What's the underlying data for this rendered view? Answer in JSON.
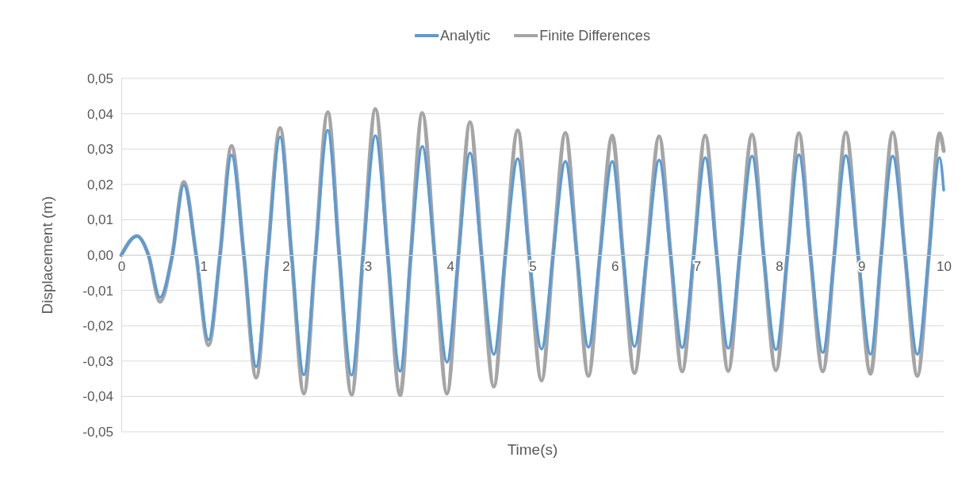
{
  "chart_data": {
    "type": "line",
    "xlabel": "Time(s)",
    "ylabel": "Displacement (m)",
    "x": [
      0,
      0.19,
      0.33,
      0.47,
      0.62,
      0.76,
      0.91,
      1.06,
      1.2,
      1.34,
      1.49,
      1.64,
      1.78,
      1.93,
      2.07,
      2.22,
      2.36,
      2.51,
      2.65,
      2.8,
      2.94,
      3.09,
      3.24,
      3.39,
      3.52,
      3.66,
      3.81,
      3.96,
      4.1,
      4.24,
      4.38,
      4.53,
      4.67,
      4.82,
      4.96,
      5.11,
      5.25,
      5.4,
      5.54,
      5.68,
      5.82,
      5.97,
      6.1,
      6.24,
      6.39,
      6.54,
      6.68,
      6.82,
      6.96,
      7.1,
      7.24,
      7.38,
      7.52,
      7.67,
      7.81,
      7.96,
      8.1,
      8.24,
      8.38,
      8.53,
      8.67,
      8.81,
      8.96,
      9.11,
      9.24,
      9.38,
      9.53,
      9.68,
      9.82,
      9.95,
      10
    ],
    "series": [
      {
        "name": "Analytic",
        "color": "#5b9bd5",
        "values": [
          0,
          0.0054,
          0,
          -0.012,
          0,
          0.0198,
          0,
          -0.024,
          0,
          0.0283,
          0,
          -0.0316,
          0,
          0.0334,
          0,
          -0.0339,
          0,
          0.0353,
          0,
          -0.034,
          0,
          0.0338,
          0,
          -0.0329,
          0,
          0.0308,
          0,
          -0.0303,
          0,
          0.0289,
          0,
          -0.0281,
          0,
          0.0273,
          0,
          -0.0266,
          0,
          0.0265,
          0,
          -0.0261,
          0,
          0.0265,
          0,
          -0.0259,
          0,
          0.0269,
          0,
          -0.0262,
          0,
          0.0276,
          0,
          -0.0264,
          0,
          0.028,
          0,
          -0.0268,
          0,
          0.0284,
          0,
          -0.0276,
          0,
          0.0282,
          0,
          -0.0281,
          0,
          0.028,
          0,
          -0.0281,
          0,
          0.0276,
          0.0184
        ]
      },
      {
        "name": "Finite Differences",
        "color": "#a5a5a5",
        "values": [
          0,
          0.0054,
          0,
          -0.0132,
          0,
          0.0207,
          0,
          -0.0255,
          0,
          0.0309,
          0,
          -0.0347,
          0,
          0.036,
          0,
          -0.0392,
          0,
          0.0404,
          0,
          -0.0395,
          0,
          0.0413,
          0,
          -0.0396,
          0,
          0.0402,
          0,
          -0.0392,
          0,
          0.0376,
          0,
          -0.0372,
          0,
          0.0353,
          0,
          -0.0355,
          0,
          0.0346,
          0,
          -0.0342,
          0,
          0.0338,
          0,
          -0.0334,
          0,
          0.0336,
          0,
          -0.0329,
          0,
          0.0338,
          0,
          -0.0328,
          0,
          0.0341,
          0,
          -0.0326,
          0,
          0.0345,
          0,
          -0.0329,
          0,
          0.0347,
          0,
          -0.0336,
          0,
          0.0347,
          0,
          -0.0342,
          0,
          0.0345,
          0.0295
        ]
      }
    ],
    "xlim": [
      0,
      10
    ],
    "xticks": [
      0,
      1,
      2,
      3,
      4,
      5,
      6,
      7,
      8,
      9,
      10
    ],
    "ylim": [
      -0.05,
      0.05
    ],
    "yticks": [
      {
        "value": -0.05,
        "label": "-0,05"
      },
      {
        "value": -0.04,
        "label": "-0,04"
      },
      {
        "value": -0.03,
        "label": "-0,03"
      },
      {
        "value": -0.02,
        "label": "-0,02"
      },
      {
        "value": -0.01,
        "label": "-0,01"
      },
      {
        "value": 0,
        "label": "0,00"
      },
      {
        "value": 0.01,
        "label": "0,01"
      },
      {
        "value": 0.02,
        "label": "0,02"
      },
      {
        "value": 0.03,
        "label": "0,03"
      },
      {
        "value": 0.04,
        "label": "0,04"
      },
      {
        "value": 0.05,
        "label": "0,05"
      }
    ],
    "grid": "y",
    "legend": "top",
    "marker": "none",
    "line_style": "solid"
  }
}
